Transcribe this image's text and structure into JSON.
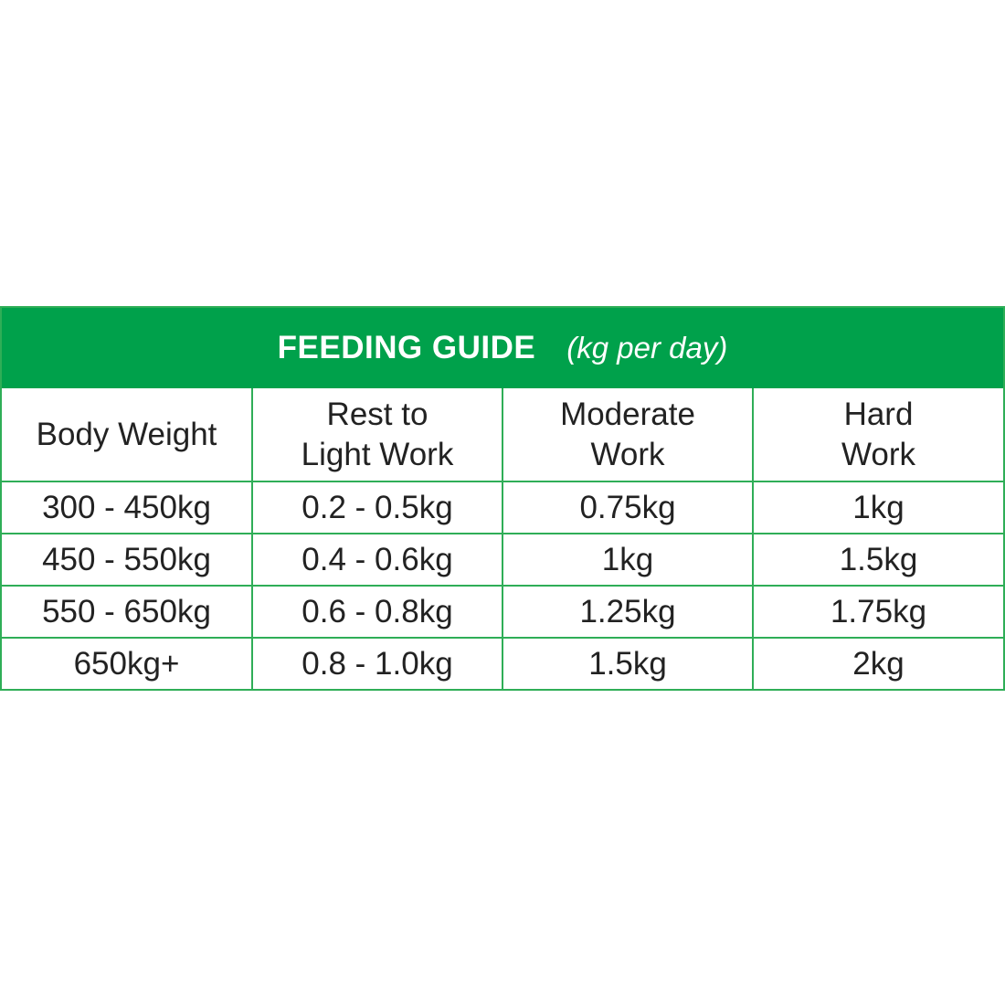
{
  "header": {
    "title": "FEEDING GUIDE",
    "subtitle": "(kg per day)"
  },
  "table": {
    "columns": [
      "Body Weight",
      "Rest to\nLight Work",
      "Moderate\nWork",
      "Hard\nWork"
    ],
    "rows": [
      [
        "300 - 450kg",
        "0.2 - 0.5kg",
        "0.75kg",
        "1kg"
      ],
      [
        "450 - 550kg",
        "0.4 - 0.6kg",
        "1kg",
        "1.5kg"
      ],
      [
        "550 - 650kg",
        "0.6 - 0.8kg",
        "1.25kg",
        "1.75kg"
      ],
      [
        "650kg+",
        "0.8 - 1.0kg",
        "1.5kg",
        "2kg"
      ]
    ]
  }
}
